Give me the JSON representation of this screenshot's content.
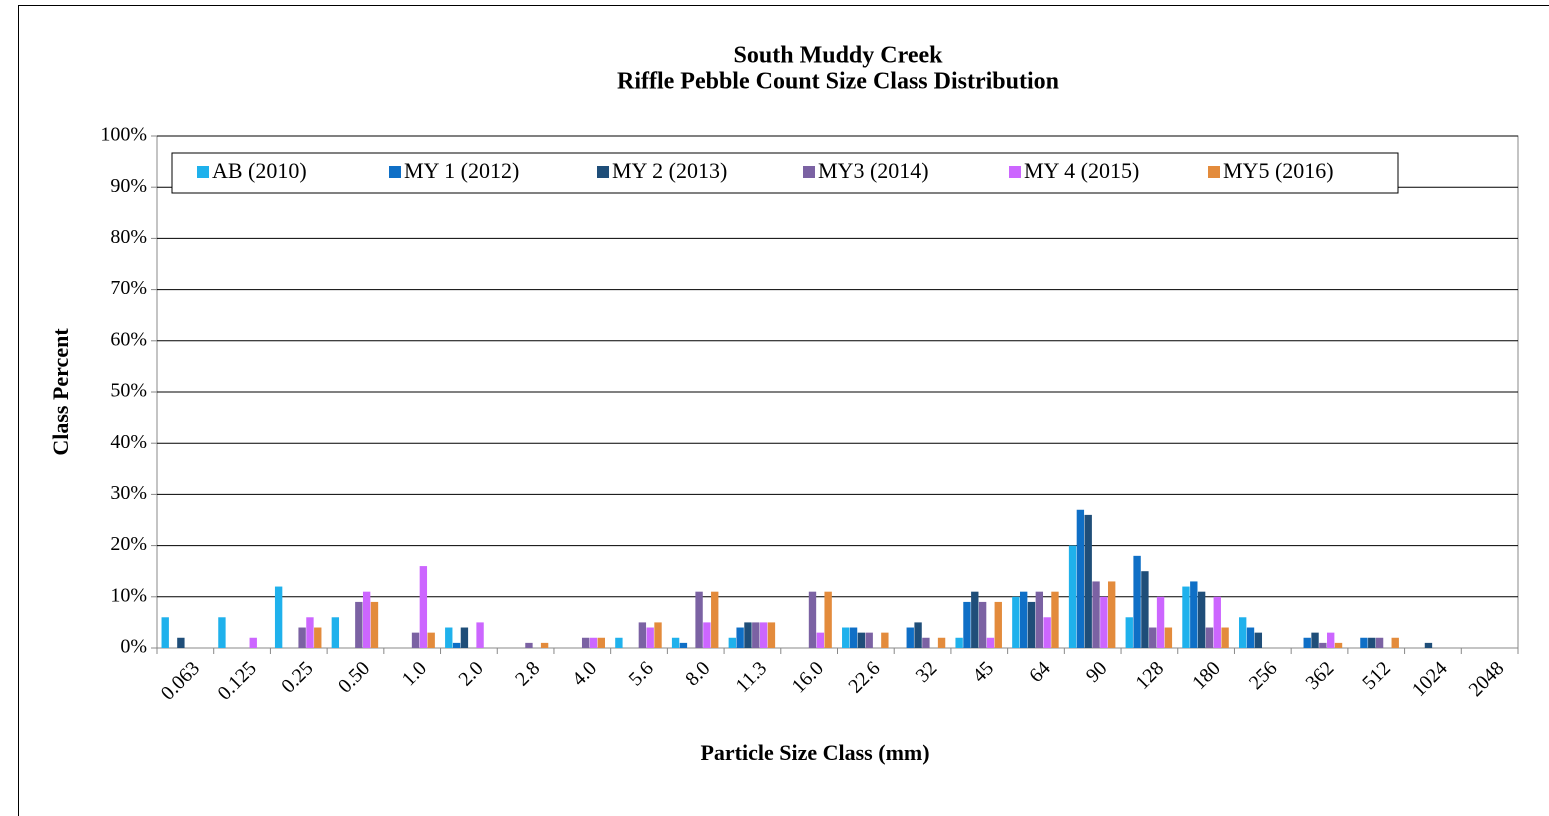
{
  "chart_data": {
    "type": "bar",
    "title": "South Muddy Creek",
    "subtitle": "Riffle Pebble Count Size Class Distribution",
    "x_label": "Particle Size Class (mm)",
    "y_label": "Class Percent",
    "categories": [
      "0.063",
      "0.125",
      "0.25",
      "0.50",
      "1.0",
      "2.0",
      "2.8",
      "4.0",
      "5.6",
      "8.0",
      "11.3",
      "16.0",
      "22.6",
      "32",
      "45",
      "64",
      "90",
      "128",
      "180",
      "256",
      "362",
      "512",
      "1024",
      "2048"
    ],
    "series": [
      {
        "name": "AB (2010)",
        "color": "#1fb1ec",
        "values": [
          6,
          6,
          12,
          6,
          0,
          4,
          0,
          0,
          2,
          2,
          2,
          0,
          4,
          0,
          2,
          10,
          20,
          6,
          12,
          6,
          0,
          0,
          0,
          0
        ]
      },
      {
        "name": "MY 1 (2012)",
        "color": "#0f6fc6",
        "values": [
          0,
          0,
          0,
          0,
          0,
          1,
          0,
          0,
          0,
          1,
          4,
          0,
          4,
          4,
          9,
          11,
          27,
          18,
          13,
          4,
          2,
          2,
          0,
          0
        ]
      },
      {
        "name": "MY 2 (2013)",
        "color": "#1f4e79",
        "values": [
          2,
          0,
          0,
          0,
          0,
          4,
          0,
          0,
          0,
          0,
          5,
          0,
          3,
          5,
          11,
          9,
          26,
          15,
          11,
          3,
          3,
          2,
          1,
          0
        ]
      },
      {
        "name": "MY3 (2014)",
        "color": "#7b62a3",
        "values": [
          0,
          0,
          4,
          9,
          3,
          0,
          1,
          2,
          5,
          11,
          5,
          11,
          3,
          2,
          9,
          11,
          13,
          4,
          4,
          0,
          1,
          2,
          0,
          0
        ]
      },
      {
        "name": "MY 4 (2015)",
        "color": "#cc66ff",
        "values": [
          0,
          2,
          6,
          11,
          16,
          5,
          0,
          2,
          4,
          5,
          5,
          3,
          0,
          0,
          2,
          6,
          10,
          10,
          10,
          0,
          3,
          0,
          0,
          0
        ]
      },
      {
        "name": "MY5 (2016)",
        "color": "#e38b3c",
        "values": [
          0,
          0,
          4,
          9,
          3,
          0,
          1,
          2,
          5,
          11,
          5,
          11,
          3,
          2,
          9,
          11,
          13,
          4,
          4,
          0,
          1,
          2,
          0,
          0
        ]
      }
    ],
    "ylim": [
      0,
      100
    ],
    "yticks": [
      {
        "value": 0,
        "label": "0%"
      },
      {
        "value": 10,
        "label": "10%"
      },
      {
        "value": 20,
        "label": "20%"
      },
      {
        "value": 30,
        "label": "30%"
      },
      {
        "value": 40,
        "label": "40%"
      },
      {
        "value": 50,
        "label": "50%"
      },
      {
        "value": 60,
        "label": "60%"
      },
      {
        "value": 70,
        "label": "70%"
      },
      {
        "value": 80,
        "label": "80%"
      },
      {
        "value": 90,
        "label": "90%"
      },
      {
        "value": 100,
        "label": "100%"
      }
    ],
    "grid": true,
    "legend": "top"
  }
}
